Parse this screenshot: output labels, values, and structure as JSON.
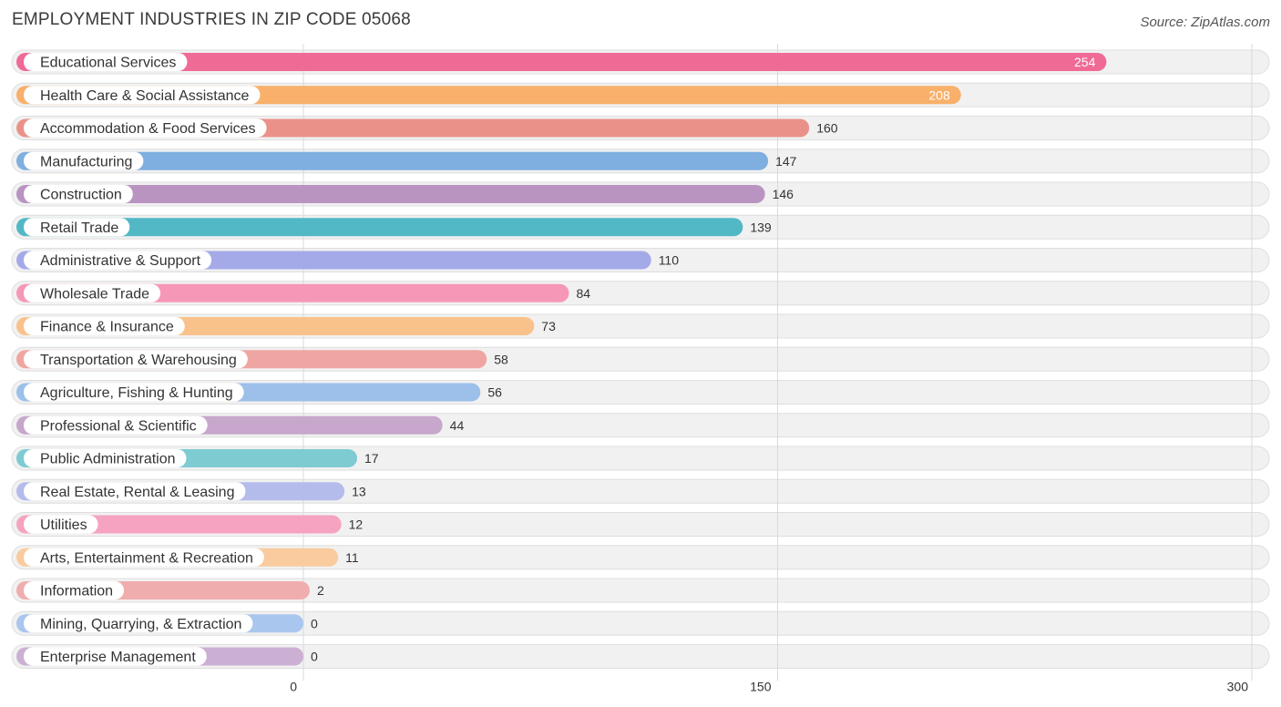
{
  "chart_data": {
    "type": "bar",
    "orientation": "horizontal",
    "title": "EMPLOYMENT INDUSTRIES IN ZIP CODE 05068",
    "source": "Source: ZipAtlas.com",
    "categories": [
      "Educational Services",
      "Health Care & Social Assistance",
      "Accommodation & Food Services",
      "Manufacturing",
      "Construction",
      "Retail Trade",
      "Administrative & Support",
      "Wholesale Trade",
      "Finance & Insurance",
      "Transportation & Warehousing",
      "Agriculture, Fishing & Hunting",
      "Professional & Scientific",
      "Public Administration",
      "Real Estate, Rental & Leasing",
      "Utilities",
      "Arts, Entertainment & Recreation",
      "Information",
      "Mining, Quarrying, & Extraction",
      "Enterprise Management"
    ],
    "values": [
      254,
      208,
      160,
      147,
      146,
      139,
      110,
      84,
      73,
      58,
      56,
      44,
      17,
      13,
      12,
      11,
      2,
      0,
      0
    ],
    "colors": [
      "#f06a96",
      "#f8b06a",
      "#ea928a",
      "#7fafe0",
      "#b994c1",
      "#52b8c6",
      "#a4aae8",
      "#f797b8",
      "#f9c28b",
      "#efa6a2",
      "#9cc0ea",
      "#c7a7cc",
      "#7ecbd2",
      "#b4bcec",
      "#f5a3c1",
      "#f9cb9e",
      "#f0adad",
      "#a9c6ee",
      "#cbb0d4"
    ],
    "xlim": [
      0,
      300
    ],
    "xticks": [
      0,
      150,
      300
    ],
    "xtick_labels": [
      "0",
      "150",
      "300"
    ],
    "grid": true,
    "value_label_inside_threshold": 200
  }
}
